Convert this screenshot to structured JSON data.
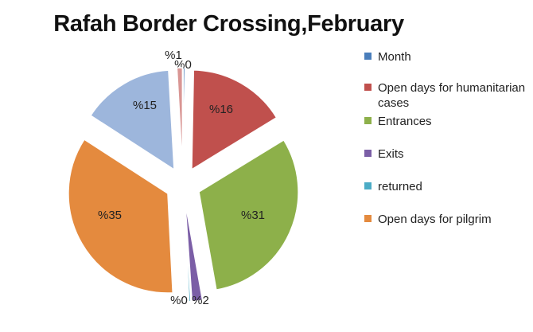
{
  "chart_data": {
    "type": "pie",
    "title": "Rafah Border Crossing,February",
    "exploded": true,
    "legend_position": "right",
    "slices": [
      {
        "name": "Month",
        "label": "%0",
        "value": 0.3,
        "color": "#4a7ebb"
      },
      {
        "name": "Open days for humanitarian cases",
        "label": "%16",
        "value": 16,
        "color": "#c0504d"
      },
      {
        "name": "Entrances",
        "label": "%31",
        "value": 31,
        "color": "#8db04a"
      },
      {
        "name": "Exits",
        "label": "%2",
        "value": 1.7,
        "color": "#7b5ea6"
      },
      {
        "name": "returned",
        "label": "%0",
        "value": 0.3,
        "color": "#4bacc6"
      },
      {
        "name": "Open days for pilgrim",
        "label": "%35",
        "value": 35,
        "color": "#e48a3e"
      },
      {
        "name": "",
        "label": "%15",
        "value": 15,
        "color": "#9db6dc"
      },
      {
        "name": "",
        "label": "%1",
        "value": 0.9,
        "color": "#d99694"
      }
    ]
  }
}
